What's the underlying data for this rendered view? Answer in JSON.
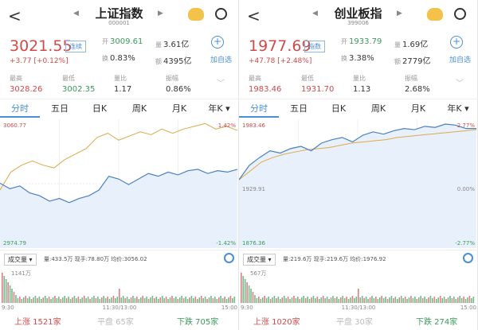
{
  "panels": [
    {
      "title": "上证指数",
      "code": "000001",
      "price": "3021.55",
      "badge": "连续",
      "change": "+3.77",
      "change_pct": "[+0.12%]",
      "open_label": "开",
      "open": "3009.61",
      "vol_label": "量",
      "vol": "3.61亿",
      "turn_label": "换",
      "turn": "0.83%",
      "amt_label": "额",
      "amt": "4395亿",
      "add_label": "加自选",
      "stats": [
        {
          "label": "最高",
          "value": "3028.26",
          "color": "#d04a4a"
        },
        {
          "label": "最低",
          "value": "3002.35",
          "color": "#3a9a5a"
        },
        {
          "label": "量比",
          "value": "1.17",
          "color": "#333"
        },
        {
          "label": "振幅",
          "value": "0.86%",
          "color": "#333"
        }
      ],
      "tabs": [
        "分时",
        "五日",
        "日K",
        "周K",
        "月K",
        "年K ▾"
      ],
      "chart": {
        "top_label": "3060.77",
        "bottom_label": "2974.79",
        "right_top": "1.42%",
        "right_bottom": "-1.42%",
        "mid_label": "",
        "right_mid": "",
        "ymin": 2974.79,
        "ymax": 3060.77,
        "price": [
          3017,
          3013,
          3015,
          3010,
          3008,
          3004,
          3006,
          3003,
          3006,
          3008,
          3012,
          3022,
          3020,
          3016,
          3020,
          3024,
          3022,
          3025,
          3023,
          3026,
          3027,
          3024,
          3026,
          3025,
          3027
        ],
        "overlay": [
          3012,
          3025,
          3030,
          3033,
          3030,
          3028,
          3034,
          3038,
          3042,
          3050,
          3053,
          3048,
          3051,
          3054,
          3052,
          3056,
          3053,
          3056,
          3058,
          3060,
          3056,
          3058,
          3055
        ]
      },
      "volume": {
        "selector": "成交量 ▾",
        "info": "量:433.5万  现手:78.80万  均价:3056.02",
        "max_label": "1141万",
        "t_start": "9:30",
        "t_mid": "11:30/13:00",
        "t_end": "15:00"
      },
      "breadth": {
        "up": "上涨  1521家",
        "flat": "平盘  65家",
        "down": "下跌  705家"
      }
    },
    {
      "title": "创业板指",
      "code": "399006",
      "price": "1977.69",
      "badge": "指数",
      "change": "+47.78",
      "change_pct": "[+2.48%]",
      "open_label": "开",
      "open": "1933.79",
      "vol_label": "量",
      "vol": "1.69亿",
      "turn_label": "换",
      "turn": "3.38%",
      "amt_label": "额",
      "amt": "2779亿",
      "add_label": "加自选",
      "stats": [
        {
          "label": "最高",
          "value": "1983.46",
          "color": "#d04a4a"
        },
        {
          "label": "最低",
          "value": "1931.70",
          "color": "#d04a4a"
        },
        {
          "label": "量比",
          "value": "1.13",
          "color": "#333"
        },
        {
          "label": "振幅",
          "value": "2.68%",
          "color": "#333"
        }
      ],
      "tabs": [
        "分时",
        "五日",
        "日K",
        "周K",
        "月K",
        "年K ▾"
      ],
      "chart": {
        "top_label": "1983.46",
        "bottom_label": "1876.36",
        "mid_label": "1929.91",
        "right_top": "2.77%",
        "right_mid": "0.00%",
        "right_bottom": "-2.77%",
        "ymin": 1876.36,
        "ymax": 1983.46,
        "price": [
          1932,
          1945,
          1952,
          1958,
          1956,
          1960,
          1962,
          1958,
          1965,
          1968,
          1970,
          1966,
          1972,
          1975,
          1973,
          1976,
          1978,
          1977,
          1980,
          1979,
          1982,
          1981,
          1978,
          1978
        ],
        "overlay": [
          1932,
          1940,
          1948,
          1952,
          1955,
          1957,
          1959,
          1960,
          1961,
          1963,
          1965,
          1966,
          1967,
          1968,
          1970,
          1971,
          1972,
          1973,
          1974,
          1975,
          1976,
          1977
        ]
      },
      "volume": {
        "selector": "成交量 ▾",
        "info": "量:219.6万  现手:219.6万  均价:1976.92",
        "max_label": "567万",
        "t_start": "9:30",
        "t_mid": "11:30/13:00",
        "t_end": "15:00"
      },
      "breadth": {
        "up": "上涨  1020家",
        "flat": "平盘  30家",
        "down": "下跌  274家"
      }
    }
  ],
  "colors": {
    "up": "#d04a4a",
    "down": "#3a9a5a",
    "accent": "#4a8fd6",
    "price_line": "#4a7fc4",
    "overlay_line": "#e0a84a",
    "fill": "#e8f1fb"
  }
}
